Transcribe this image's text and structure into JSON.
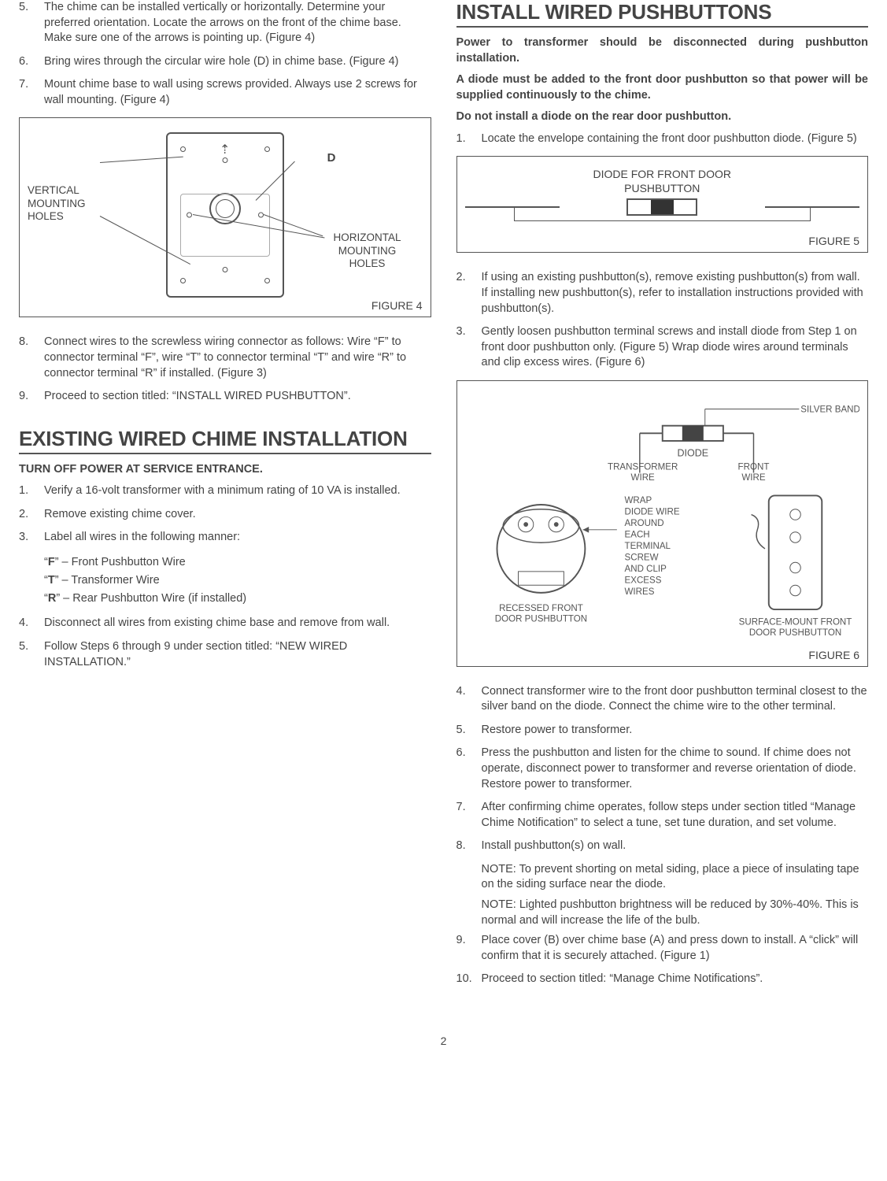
{
  "pageNumber": "2",
  "left": {
    "topList": [
      {
        "n": "5.",
        "t": "The chime can be installed vertically or horizontally. Determine your preferred orientation. Locate the arrows on the front of the chime base. Make sure one of the arrows is pointing up. (Figure 4)"
      },
      {
        "n": "6.",
        "t": "Bring wires through the circular wire hole (D) in chime base. (Figure 4)"
      },
      {
        "n": "7.",
        "t": "Mount chime base to wall using screws provided. Always use 2 screws for wall mounting. (Figure 4)"
      }
    ],
    "fig4": {
      "label": "FIGURE 4",
      "D": "D",
      "vLabel": "VERTICAL\nMOUNTING\nHOLES",
      "hLabel": "HORIZONTAL\nMOUNTING\nHOLES"
    },
    "midList": [
      {
        "n": "8.",
        "t": "Connect wires to the screwless wiring connector as follows: Wire “F” to connector terminal “F”, wire “T” to connector terminal “T” and wire “R” to connector terminal “R” if installed. (Figure 3)"
      },
      {
        "n": "9.",
        "t": "Proceed to section titled: “INSTALL WIRED PUSHBUTTON”."
      }
    ],
    "h1": "EXISTING WIRED CHIME INSTALLATION",
    "warn": "TURN OFF POWER AT SERVICE ENTRANCE.",
    "list2": [
      {
        "n": "1.",
        "t": "Verify a 16-volt transformer with a minimum rating of 10 VA is installed."
      },
      {
        "n": "2.",
        "t": "Remove existing chime cover."
      },
      {
        "n": "3.",
        "t": "Label all wires in the following manner:"
      }
    ],
    "wireDefs": [
      "“F” – Front Pushbutton Wire",
      "“T” – Transformer Wire",
      "“R” – Rear Pushbutton Wire (if installed)"
    ],
    "wireBold": [
      "F",
      "T",
      "R"
    ],
    "list3": [
      {
        "n": "4.",
        "t": "Disconnect all wires from existing chime base and remove from wall."
      },
      {
        "n": "5.",
        "t": "Follow Steps 6 through 9 under section titled: “NEW WIRED INSTALLATION.”"
      }
    ]
  },
  "right": {
    "h1": "INSTALL WIRED PUSHBUTTONS",
    "p1": "Power to transformer should be disconnected during pushbutton installation.",
    "p2": "A diode must be added to the front door pushbutton so that power will be supplied continuously to the chime.",
    "p3": "Do not install a diode on the rear door pushbutton.",
    "list1": [
      {
        "n": "1.",
        "t": "Locate the envelope containing the front door pushbutton diode. (Figure 5)"
      }
    ],
    "fig5": {
      "title1": "DIODE FOR FRONT DOOR",
      "title2": "PUSHBUTTON",
      "label": "FIGURE 5"
    },
    "list2": [
      {
        "n": "2.",
        "t": "If using an existing pushbutton(s), remove existing pushbutton(s) from wall. If installing new pushbutton(s), refer to installation instructions provided with pushbutton(s)."
      },
      {
        "n": "3.",
        "t": "Gently loosen pushbutton terminal screws and install diode from Step 1 on front door pushbutton only. (Figure 5) Wrap diode wires around terminals and clip excess wires. (Figure 6)"
      }
    ],
    "fig6": {
      "label": "FIGURE 6",
      "silver": "SILVER BAND",
      "diode": "DIODE",
      "transWire": "TRANSFORMER\nWIRE",
      "frontWire": "FRONT\nWIRE",
      "wrap": "WRAP\nDIODE WIRE\nAROUND\nEACH\nTERMINAL\nSCREW\nAND CLIP\nEXCESS\nWIRES",
      "recessed": "RECESSED FRONT\nDOOR PUSHBUTTON",
      "surface": "SURFACE-MOUNT FRONT\nDOOR PUSHBUTTON"
    },
    "list3": [
      {
        "n": "4.",
        "t": "Connect transformer wire to the front door pushbutton terminal closest to the silver band on the diode. Connect the chime wire to the other terminal."
      },
      {
        "n": "5.",
        "t": "Restore power to transformer."
      },
      {
        "n": "6.",
        "t": "Press the pushbutton and listen for the chime to sound. If chime does not operate, disconnect power to transformer and reverse orientation of diode. Restore power to transformer."
      },
      {
        "n": "7.",
        "t": "After confirming chime operates, follow steps under section titled “Manage Chime Notification” to select a tune, set tune duration, and set volume."
      },
      {
        "n": "8.",
        "t": "Install pushbutton(s) on wall."
      }
    ],
    "note1": "NOTE: To prevent shorting on metal siding, place a piece of insulating tape on the siding surface near the diode.",
    "note2": "NOTE: Lighted pushbutton brightness will be reduced by 30%-40%. This is normal and will increase the life of the bulb.",
    "list4": [
      {
        "n": "9.",
        "t": "Place cover (B) over chime base (A) and press down to install. A “click” will confirm that it is securely attached. (Figure 1)"
      },
      {
        "n": "10.",
        "t": "Proceed to section titled: “Manage Chime Notifications”."
      }
    ]
  }
}
